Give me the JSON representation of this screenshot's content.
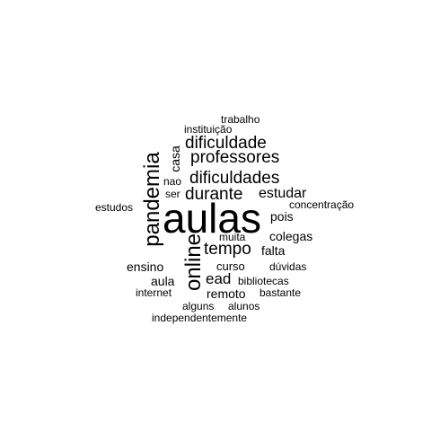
{
  "wordcloud": {
    "words": {
      "aulas": "aulas",
      "pandemia": "pandemia",
      "online": "online",
      "casa": "casa",
      "dificuldade": "dificuldade",
      "professores": "professores",
      "dificuldades": "dificuldades",
      "durante": "durante",
      "estudar": "estudar",
      "tempo": "tempo",
      "trabalho": "trabalho",
      "instituicao": "instituição",
      "nao": "nao",
      "ser": "ser",
      "estudos": "estudos",
      "concentracao": "concentração",
      "pois": "pois",
      "muita": "muita",
      "colegas": "colegas",
      "falta": "falta",
      "ensino": "ensino",
      "curso": "curso",
      "duvidas": "dúvidas",
      "aula": "aula",
      "ead": "ead",
      "bibliotecas": "bibliotecas",
      "internet": "internet",
      "remoto": "remoto",
      "bastante": "bastante",
      "alguns": "alguns",
      "alunos": "alunos",
      "independentemente": "independentemente"
    },
    "colors": {
      "text": "#000000",
      "background": "#ffffff"
    }
  }
}
